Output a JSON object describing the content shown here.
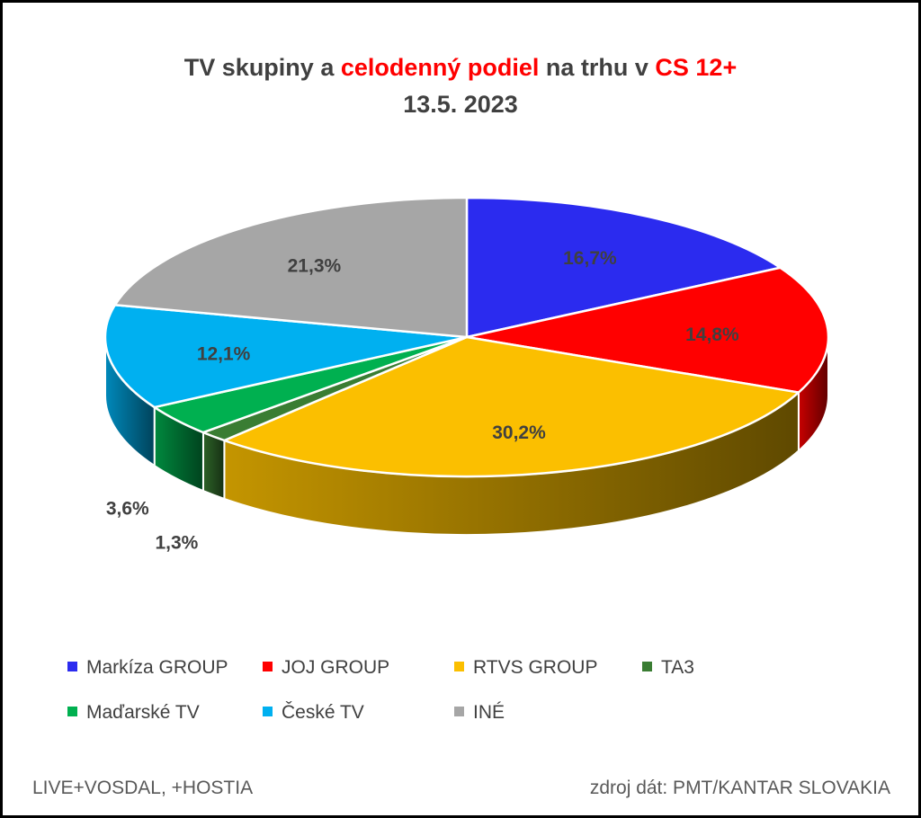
{
  "chart_data": {
    "type": "pie",
    "title_line1": [
      "TV skupiny a ",
      "celodenný podiel",
      " na trhu v ",
      "CS 12+"
    ],
    "title_line2": "13.5. 2023",
    "slices": [
      {
        "name": "Markíza GROUP",
        "value": 16.7,
        "label": "16,7%",
        "color": "#2b2bef"
      },
      {
        "name": "JOJ GROUP",
        "value": 14.8,
        "label": "14,8%",
        "color": "#ff0000"
      },
      {
        "name": "RTVS GROUP",
        "value": 30.2,
        "label": "30,2%",
        "color": "#fbbf00"
      },
      {
        "name": "TA3",
        "value": 1.3,
        "label": "1,3%",
        "color": "#3a7d33"
      },
      {
        "name": "Maďarské  TV",
        "value": 3.6,
        "label": "3,6%",
        "color": "#00b050"
      },
      {
        "name": "České  TV",
        "value": 12.1,
        "label": "12,1%",
        "color": "#00b0f0"
      },
      {
        "name": "INÉ",
        "value": 21.3,
        "label": "21,3%",
        "color": "#a6a6a6"
      }
    ],
    "legend_position": "bottom"
  },
  "footer": {
    "left": "LIVE+VOSDAL, +HOSTIA",
    "right": "zdroj dát: PMT/KANTAR SLOVAKIA"
  }
}
